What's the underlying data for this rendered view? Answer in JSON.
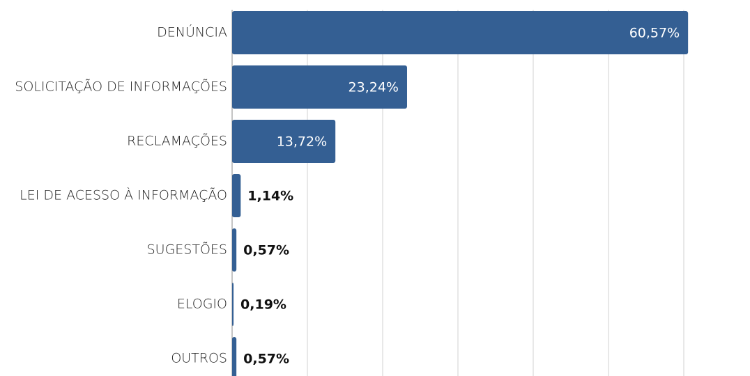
{
  "chart_data": {
    "type": "bar",
    "orientation": "horizontal",
    "categories": [
      "DENÚNCIA",
      "SOLICITAÇÃO DE INFORMAÇÕES",
      "RECLAMAÇÕES",
      "LEI DE ACESSO À INFORMAÇÃO",
      "SUGESTÕES",
      "ELOGIO",
      "OUTROS"
    ],
    "values": [
      60.57,
      23.24,
      13.72,
      1.14,
      0.57,
      0.19,
      0.57
    ],
    "value_labels": [
      "60,57%",
      "23,24%",
      "13,72%",
      "1,14%",
      "0,57%",
      "0,19%",
      "0,57%"
    ],
    "color": "#345f93",
    "xlim": [
      0,
      60
    ],
    "xticks": [
      0,
      10,
      20,
      30,
      40,
      50,
      60
    ],
    "grid": true
  }
}
